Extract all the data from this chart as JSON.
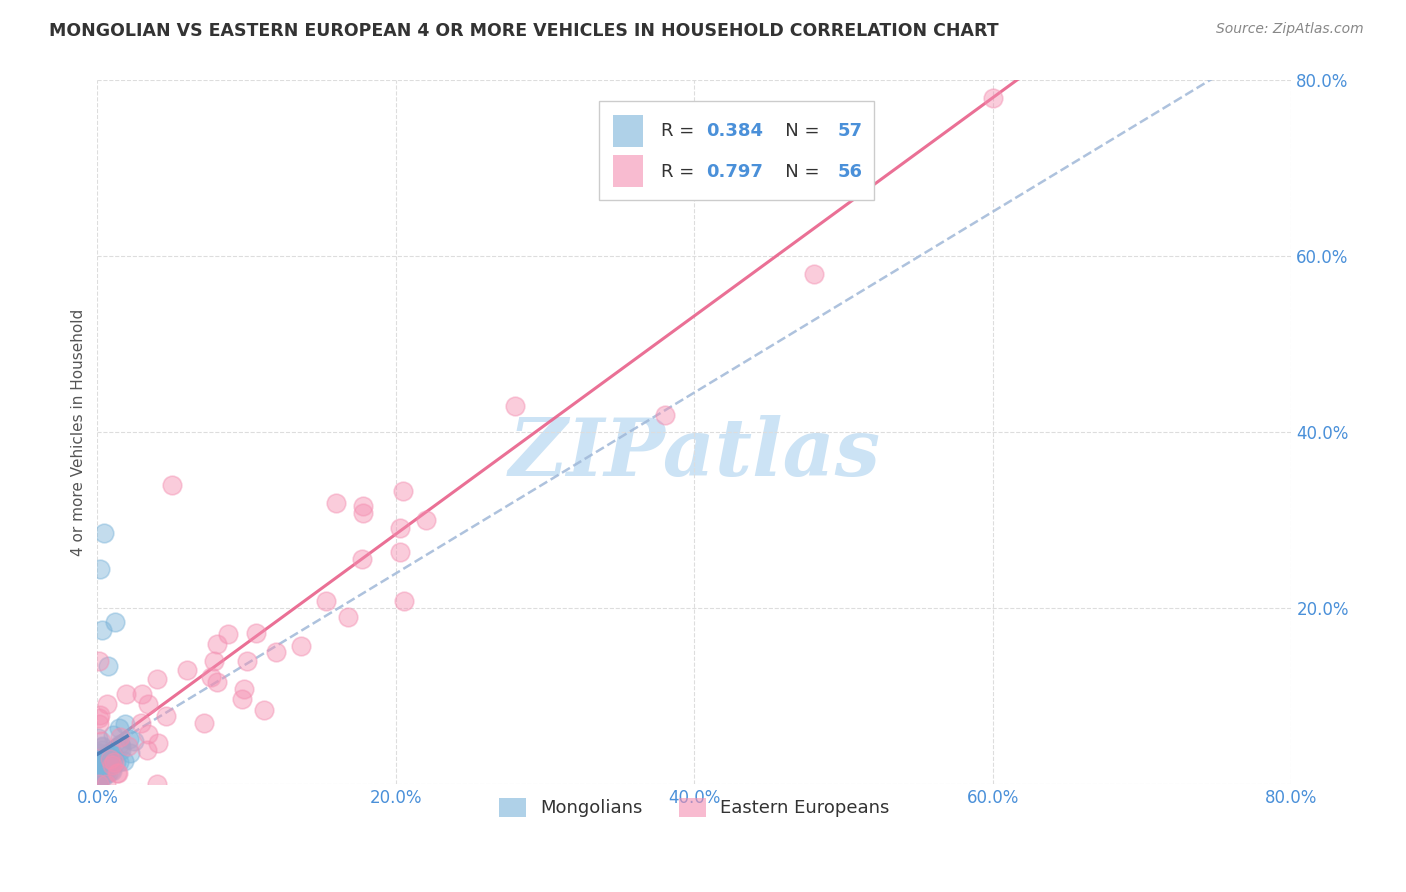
{
  "title": "MONGOLIAN VS EASTERN EUROPEAN 4 OR MORE VEHICLES IN HOUSEHOLD CORRELATION CHART",
  "source": "Source: ZipAtlas.com",
  "ylabel": "4 or more Vehicles in Household",
  "xlabel_mongolians": "Mongolians",
  "xlabel_eastern": "Eastern Europeans",
  "xlim": [
    0.0,
    0.8
  ],
  "ylim": [
    0.0,
    0.8
  ],
  "xticks": [
    0.0,
    0.2,
    0.4,
    0.6,
    0.8
  ],
  "yticks": [
    0.0,
    0.2,
    0.4,
    0.6,
    0.8
  ],
  "xticklabels": [
    "0.0%",
    "20.0%",
    "40.0%",
    "60.0%",
    "80.0%"
  ],
  "yticklabels": [
    "",
    "20.0%",
    "40.0%",
    "60.0%",
    "80.0%"
  ],
  "R_mongolian": 0.384,
  "N_mongolian": 57,
  "R_eastern": 0.797,
  "N_eastern": 56,
  "color_mongolian": "#7ab3d9",
  "color_eastern": "#f48fb1",
  "color_trendline_mongolian": "#a0b8d8",
  "color_trendline_eastern": "#e8608a",
  "color_trendline_mongolian_solid": "#4a7ab5",
  "watermark": "ZIPatlas",
  "watermark_color": "#cce3f5",
  "background_color": "#ffffff",
  "grid_color": "#dddddd",
  "tick_color": "#4a90d9",
  "title_color": "#333333",
  "legend_R_color": "#4a90d9",
  "legend_N_color": "#4a90d9"
}
